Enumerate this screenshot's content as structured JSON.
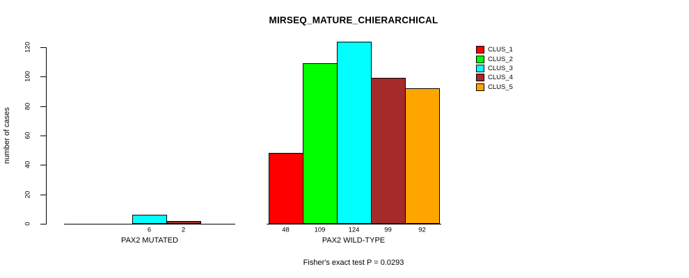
{
  "title": "MIRSEQ_MATURE_CHIERARCHICAL",
  "footer": "Fisher's exact test P = 0.0293",
  "chart_data": {
    "type": "bar",
    "title": "MIRSEQ_MATURE_CHIERARCHICAL",
    "ylabel": "number of cases",
    "ylim": [
      0,
      120
    ],
    "yticks": [
      0,
      20,
      40,
      60,
      80,
      100,
      120
    ],
    "grid": false,
    "series_names": [
      "CLUS_1",
      "CLUS_2",
      "CLUS_3",
      "CLUS_4",
      "CLUS_5"
    ],
    "legend": {
      "position": "top-right",
      "entries": [
        {
          "label": "CLUS_1",
          "color": "#FF0000"
        },
        {
          "label": "CLUS_2",
          "color": "#00FF00"
        },
        {
          "label": "CLUS_3",
          "color": "#00FFFF"
        },
        {
          "label": "CLUS_4",
          "color": "#A52A2A"
        },
        {
          "label": "CLUS_5",
          "color": "#FFA500"
        }
      ]
    },
    "groups": [
      {
        "label": "PAX2 MUTATED",
        "values": [
          0,
          0,
          6,
          2,
          0
        ],
        "bar_labels": [
          "",
          "",
          "6",
          "2",
          ""
        ]
      },
      {
        "label": "PAX2 WILD-TYPE",
        "values": [
          48,
          109,
          124,
          99,
          92
        ],
        "bar_labels": [
          "48",
          "109",
          "124",
          "99",
          "92"
        ]
      }
    ],
    "annotation": "Fisher's exact test P = 0.0293"
  }
}
